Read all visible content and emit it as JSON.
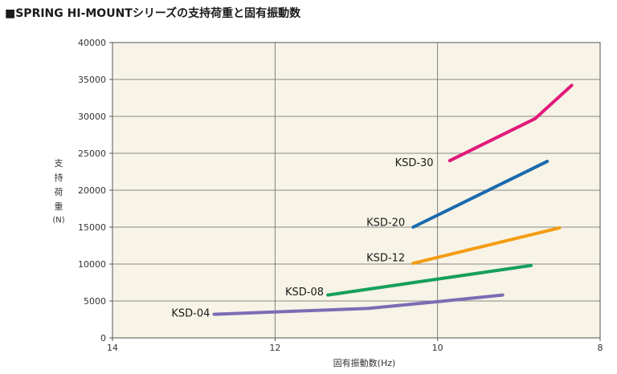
{
  "title": "■SPRING  HI-MOUNTシリーズの支持荷重と固有振動数",
  "chart_data": {
    "type": "line",
    "xlabel": "固有振動数(Hz)",
    "ylabel": "支持荷重",
    "ylabel_unit": "(N)",
    "xlim": [
      14,
      8
    ],
    "ylim": [
      0,
      40000
    ],
    "x_reversed": true,
    "xticks": [
      "14",
      "12",
      "10",
      "8"
    ],
    "yticks": [
      "0",
      "5000",
      "10000",
      "15000",
      "20000",
      "25000",
      "30000",
      "35000",
      "40000"
    ],
    "grid": true,
    "background": "#f7f3e6",
    "series": [
      {
        "name": "KSD-04",
        "color": "#7b6cb5",
        "points": [
          [
            12.75,
            3200
          ],
          [
            10.85,
            4000
          ],
          [
            10.0,
            4900
          ],
          [
            9.2,
            5800
          ]
        ]
      },
      {
        "name": "KSD-08",
        "color": "#16a05c",
        "points": [
          [
            11.35,
            5800
          ],
          [
            8.85,
            9800
          ]
        ]
      },
      {
        "name": "KSD-12",
        "color": "#f39c12",
        "points": [
          [
            10.3,
            10100
          ],
          [
            8.5,
            14900
          ]
        ]
      },
      {
        "name": "KSD-20",
        "color": "#1a6aad",
        "points": [
          [
            10.3,
            15000
          ],
          [
            8.65,
            23900
          ]
        ]
      },
      {
        "name": "KSD-30",
        "color": "#e0197a",
        "points": [
          [
            9.85,
            24000
          ],
          [
            8.8,
            29700
          ],
          [
            8.35,
            34200
          ]
        ]
      }
    ],
    "series_labels": [
      {
        "text": "KSD-04",
        "x": 12.8,
        "y": 3400
      },
      {
        "text": "KSD-08",
        "x": 11.4,
        "y": 6300
      },
      {
        "text": "KSD-12",
        "x": 10.4,
        "y": 10900
      },
      {
        "text": "KSD-20",
        "x": 10.4,
        "y": 15700
      },
      {
        "text": "KSD-30",
        "x": 10.05,
        "y": 23800
      }
    ]
  }
}
